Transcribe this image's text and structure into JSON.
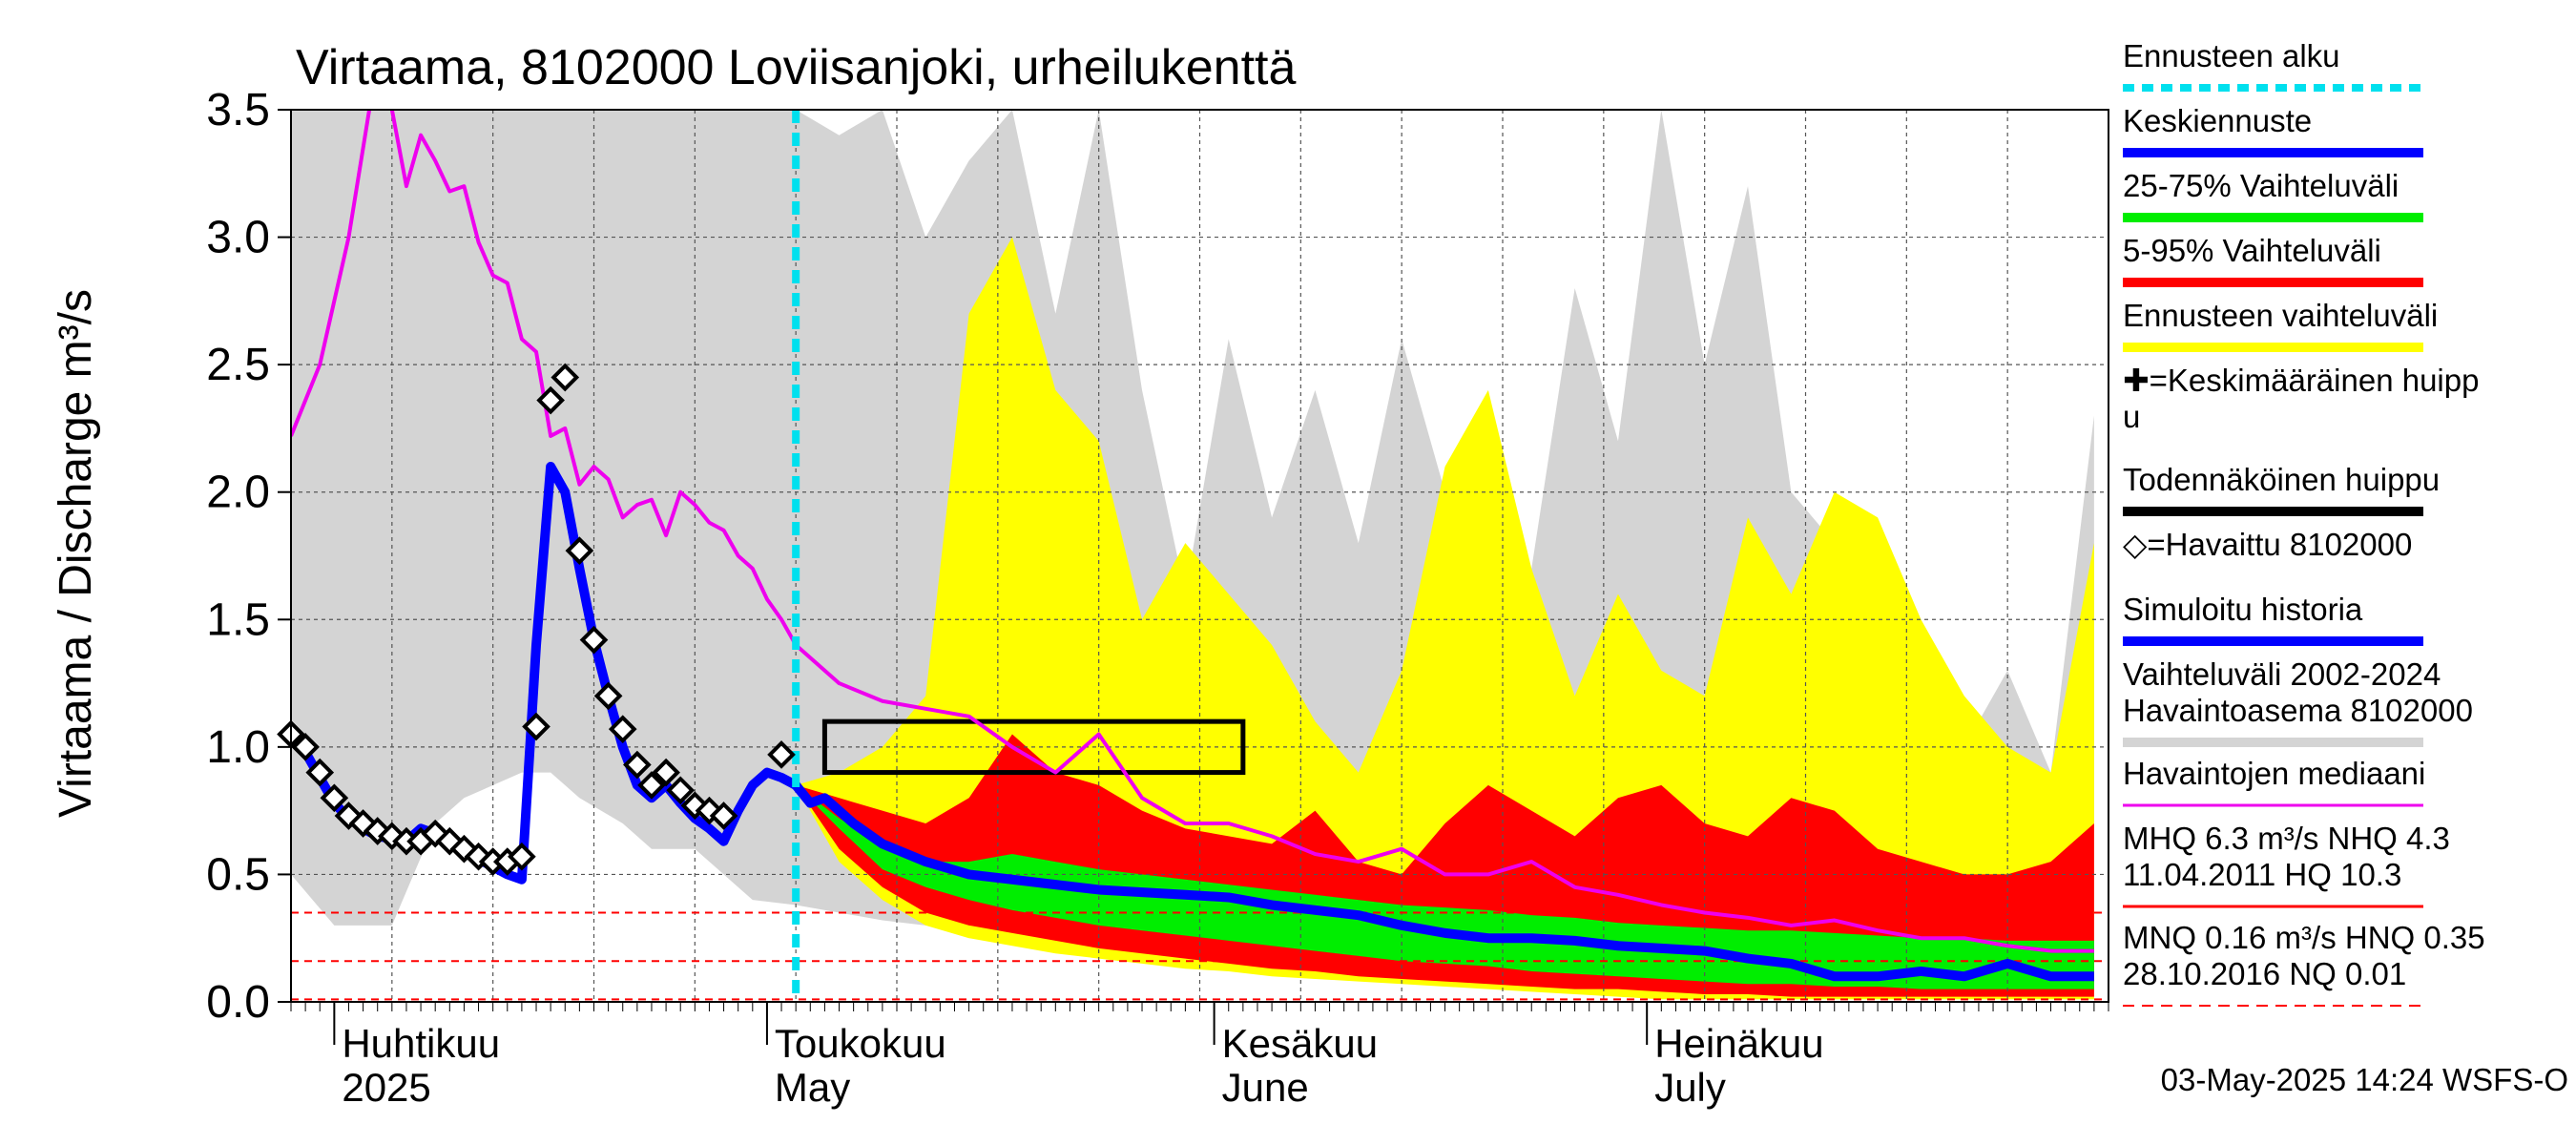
{
  "chart_data": {
    "type": "area",
    "title": "Virtaama, 8102000 Loviisanjoki, urheilukenttä",
    "ylabel": "Virtaama / Discharge    m³/s",
    "ylim": [
      0,
      3.5
    ],
    "yticks": [
      "0.0",
      "0.5",
      "1.0",
      "1.5",
      "2.0",
      "2.5",
      "3.0",
      "3.5"
    ],
    "x_domain": [
      "2025-03-29",
      "2025-08-02"
    ],
    "forecast_start": "2025-05-03",
    "months": [
      {
        "fi": "Huhtikuu",
        "en": "2025",
        "date": "2025-04-01"
      },
      {
        "fi": "Toukokuu",
        "en": "May",
        "date": "2025-05-01"
      },
      {
        "fi": "Kesäkuu",
        "en": "June",
        "date": "2025-06-01"
      },
      {
        "fi": "Heinäkuu",
        "en": "July",
        "date": "2025-07-01"
      }
    ],
    "reference_lines": [
      0.35,
      0.16,
      0.01
    ],
    "probable_peak_box": {
      "x_start": "2025-05-05",
      "x_end": "2025-06-03",
      "y_low": 0.9,
      "y_high": 1.1
    },
    "series": [
      {
        "name": "Vaihteluväli 2002-2024 Havaintoasema 8102000",
        "color": "#d4d4d4",
        "x": [
          "2025-03-29",
          "2025-04-01",
          "2025-04-05",
          "2025-04-08",
          "2025-04-10",
          "2025-04-14",
          "2025-04-16",
          "2025-04-18",
          "2025-04-21",
          "2025-04-23",
          "2025-04-26",
          "2025-04-28",
          "2025-04-30",
          "2025-05-03",
          "2025-05-06",
          "2025-05-09",
          "2025-05-12",
          "2025-05-15",
          "2025-05-18",
          "2025-05-21",
          "2025-05-24",
          "2025-05-27",
          "2025-05-30",
          "2025-06-02",
          "2025-06-05",
          "2025-06-08",
          "2025-06-11",
          "2025-06-14",
          "2025-06-17",
          "2025-06-20",
          "2025-06-23",
          "2025-06-26",
          "2025-06-29",
          "2025-07-02",
          "2025-07-05",
          "2025-07-08",
          "2025-07-11",
          "2025-07-14",
          "2025-07-17",
          "2025-07-20",
          "2025-07-23",
          "2025-07-26",
          "2025-07-29",
          "2025-08-01"
        ],
        "upper": [
          3.5,
          3.5,
          3.5,
          3.5,
          3.5,
          3.5,
          3.5,
          3.5,
          3.5,
          3.5,
          3.5,
          3.5,
          3.5,
          3.5,
          3.4,
          3.5,
          3.0,
          3.3,
          3.5,
          2.7,
          3.5,
          2.4,
          1.6,
          2.6,
          1.9,
          2.4,
          1.8,
          2.6,
          2.0,
          2.3,
          1.7,
          2.8,
          2.2,
          3.5,
          2.5,
          3.2,
          2.0,
          1.8,
          1.2,
          1.5,
          1.0,
          1.3,
          0.9,
          2.3
        ],
        "lower": [
          0.5,
          0.3,
          0.3,
          0.7,
          0.8,
          0.9,
          0.9,
          0.8,
          0.7,
          0.6,
          0.6,
          0.5,
          0.4,
          0.38,
          0.35,
          0.32,
          0.3,
          0.28,
          0.26,
          0.24,
          0.22,
          0.2,
          0.19,
          0.18,
          0.17,
          0.16,
          0.15,
          0.14,
          0.13,
          0.12,
          0.11,
          0.1,
          0.1,
          0.09,
          0.08,
          0.08,
          0.07,
          0.07,
          0.06,
          0.06,
          0.05,
          0.05,
          0.05,
          0.05
        ]
      },
      {
        "name": "Ennusteen vaihteluväli",
        "color": "#ffff00",
        "x": [
          "2025-05-03",
          "2025-05-06",
          "2025-05-09",
          "2025-05-12",
          "2025-05-15",
          "2025-05-18",
          "2025-05-21",
          "2025-05-24",
          "2025-05-27",
          "2025-05-30",
          "2025-06-02",
          "2025-06-05",
          "2025-06-08",
          "2025-06-11",
          "2025-06-14",
          "2025-06-17",
          "2025-06-20",
          "2025-06-23",
          "2025-06-26",
          "2025-06-29",
          "2025-07-02",
          "2025-07-05",
          "2025-07-08",
          "2025-07-11",
          "2025-07-14",
          "2025-07-17",
          "2025-07-20",
          "2025-07-23",
          "2025-07-26",
          "2025-07-29",
          "2025-08-01"
        ],
        "upper": [
          0.85,
          0.9,
          1.0,
          1.2,
          2.7,
          3.0,
          2.4,
          2.2,
          1.5,
          1.8,
          1.6,
          1.4,
          1.1,
          0.9,
          1.3,
          2.1,
          2.4,
          1.7,
          1.2,
          1.6,
          1.3,
          1.2,
          1.9,
          1.6,
          2.0,
          1.9,
          1.5,
          1.2,
          1.0,
          0.9,
          1.8
        ],
        "lower": [
          0.85,
          0.55,
          0.4,
          0.3,
          0.25,
          0.22,
          0.19,
          0.17,
          0.15,
          0.13,
          0.12,
          0.1,
          0.09,
          0.08,
          0.07,
          0.06,
          0.05,
          0.04,
          0.03,
          0.02,
          0.01,
          0.01,
          0.01,
          0.01,
          0.01,
          0.01,
          0.01,
          0.01,
          0.01,
          0.01,
          0.01
        ]
      },
      {
        "name": "5-95% Vaihteluväli",
        "color": "#ff0000",
        "x": [
          "2025-05-03",
          "2025-05-06",
          "2025-05-09",
          "2025-05-12",
          "2025-05-15",
          "2025-05-18",
          "2025-05-21",
          "2025-05-24",
          "2025-05-27",
          "2025-05-30",
          "2025-06-02",
          "2025-06-05",
          "2025-06-08",
          "2025-06-11",
          "2025-06-14",
          "2025-06-17",
          "2025-06-20",
          "2025-06-23",
          "2025-06-26",
          "2025-06-29",
          "2025-07-02",
          "2025-07-05",
          "2025-07-08",
          "2025-07-11",
          "2025-07-14",
          "2025-07-17",
          "2025-07-20",
          "2025-07-23",
          "2025-07-26",
          "2025-07-29",
          "2025-08-01"
        ],
        "upper": [
          0.85,
          0.8,
          0.75,
          0.7,
          0.8,
          1.05,
          0.9,
          0.85,
          0.75,
          0.68,
          0.65,
          0.62,
          0.75,
          0.55,
          0.5,
          0.7,
          0.85,
          0.75,
          0.65,
          0.8,
          0.85,
          0.7,
          0.65,
          0.8,
          0.75,
          0.6,
          0.55,
          0.5,
          0.5,
          0.55,
          0.7
        ],
        "lower": [
          0.85,
          0.6,
          0.45,
          0.35,
          0.3,
          0.27,
          0.24,
          0.21,
          0.19,
          0.17,
          0.15,
          0.13,
          0.12,
          0.1,
          0.09,
          0.08,
          0.07,
          0.06,
          0.05,
          0.05,
          0.04,
          0.03,
          0.03,
          0.02,
          0.02,
          0.02,
          0.02,
          0.02,
          0.02,
          0.02,
          0.02
        ]
      },
      {
        "name": "25-75% Vaihteluväli",
        "color": "#00ee00",
        "x": [
          "2025-05-03",
          "2025-05-06",
          "2025-05-09",
          "2025-05-12",
          "2025-05-15",
          "2025-05-18",
          "2025-05-21",
          "2025-05-24",
          "2025-05-27",
          "2025-05-30",
          "2025-06-02",
          "2025-06-05",
          "2025-06-08",
          "2025-06-11",
          "2025-06-14",
          "2025-06-17",
          "2025-06-20",
          "2025-06-23",
          "2025-06-26",
          "2025-06-29",
          "2025-07-02",
          "2025-07-05",
          "2025-07-08",
          "2025-07-11",
          "2025-07-14",
          "2025-07-17",
          "2025-07-20",
          "2025-07-23",
          "2025-07-26",
          "2025-07-29",
          "2025-08-01"
        ],
        "upper": [
          0.85,
          0.72,
          0.62,
          0.55,
          0.55,
          0.58,
          0.55,
          0.52,
          0.5,
          0.48,
          0.46,
          0.44,
          0.42,
          0.4,
          0.38,
          0.37,
          0.36,
          0.34,
          0.33,
          0.31,
          0.3,
          0.29,
          0.28,
          0.28,
          0.27,
          0.26,
          0.25,
          0.25,
          0.24,
          0.24,
          0.24
        ],
        "lower": [
          0.85,
          0.68,
          0.52,
          0.45,
          0.4,
          0.36,
          0.33,
          0.3,
          0.28,
          0.26,
          0.24,
          0.22,
          0.2,
          0.18,
          0.16,
          0.15,
          0.14,
          0.12,
          0.11,
          0.1,
          0.09,
          0.08,
          0.07,
          0.07,
          0.06,
          0.06,
          0.05,
          0.05,
          0.05,
          0.05,
          0.05
        ]
      },
      {
        "name": "Havaintojen mediaani",
        "color": "#ee00ee",
        "x": [
          "2025-03-29",
          "2025-03-31",
          "2025-04-02",
          "2025-04-04",
          "2025-04-05",
          "2025-04-06",
          "2025-04-07",
          "2025-04-08",
          "2025-04-09",
          "2025-04-10",
          "2025-04-11",
          "2025-04-12",
          "2025-04-13",
          "2025-04-14",
          "2025-04-15",
          "2025-04-16",
          "2025-04-17",
          "2025-04-18",
          "2025-04-19",
          "2025-04-20",
          "2025-04-21",
          "2025-04-22",
          "2025-04-23",
          "2025-04-24",
          "2025-04-25",
          "2025-04-26",
          "2025-04-27",
          "2025-04-28",
          "2025-04-29",
          "2025-04-30",
          "2025-05-01",
          "2025-05-02",
          "2025-05-03",
          "2025-05-06",
          "2025-05-09",
          "2025-05-12",
          "2025-05-15",
          "2025-05-18",
          "2025-05-21",
          "2025-05-24",
          "2025-05-27",
          "2025-05-30",
          "2025-06-02",
          "2025-06-05",
          "2025-06-08",
          "2025-06-11",
          "2025-06-14",
          "2025-06-17",
          "2025-06-20",
          "2025-06-23",
          "2025-06-26",
          "2025-06-29",
          "2025-07-02",
          "2025-07-05",
          "2025-07-08",
          "2025-07-11",
          "2025-07-14",
          "2025-07-17",
          "2025-07-20",
          "2025-07-23",
          "2025-07-26",
          "2025-07-29",
          "2025-08-01"
        ],
        "values": [
          2.22,
          2.5,
          3.0,
          3.7,
          3.5,
          3.2,
          3.4,
          3.3,
          3.18,
          3.2,
          2.98,
          2.85,
          2.82,
          2.6,
          2.55,
          2.22,
          2.25,
          2.03,
          2.1,
          2.05,
          1.9,
          1.95,
          1.97,
          1.83,
          2.0,
          1.95,
          1.88,
          1.85,
          1.75,
          1.7,
          1.58,
          1.5,
          1.4,
          1.25,
          1.18,
          1.15,
          1.12,
          1.0,
          0.9,
          1.05,
          0.8,
          0.7,
          0.7,
          0.65,
          0.58,
          0.55,
          0.6,
          0.5,
          0.5,
          0.55,
          0.45,
          0.42,
          0.38,
          0.35,
          0.33,
          0.3,
          0.32,
          0.28,
          0.25,
          0.25,
          0.22,
          0.2,
          0.2
        ]
      },
      {
        "name": "Simuloitu historia",
        "color": "#0000ff",
        "x": [
          "2025-03-29",
          "2025-03-30",
          "2025-03-31",
          "2025-04-01",
          "2025-04-02",
          "2025-04-03",
          "2025-04-04",
          "2025-04-05",
          "2025-04-06",
          "2025-04-07",
          "2025-04-08",
          "2025-04-09",
          "2025-04-10",
          "2025-04-11",
          "2025-04-12",
          "2025-04-13",
          "2025-04-14",
          "2025-04-15",
          "2025-04-16",
          "2025-04-17",
          "2025-04-18",
          "2025-04-19",
          "2025-04-20",
          "2025-04-21",
          "2025-04-22",
          "2025-04-23",
          "2025-04-24",
          "2025-04-25",
          "2025-04-26",
          "2025-04-27",
          "2025-04-28",
          "2025-04-29",
          "2025-04-30",
          "2025-05-01",
          "2025-05-02",
          "2025-05-03"
        ],
        "values": [
          1.05,
          0.98,
          0.88,
          0.78,
          0.72,
          0.68,
          0.65,
          0.64,
          0.63,
          0.68,
          0.66,
          0.62,
          0.6,
          0.56,
          0.53,
          0.5,
          0.48,
          1.4,
          2.1,
          2.0,
          1.7,
          1.42,
          1.2,
          1.0,
          0.85,
          0.8,
          0.85,
          0.78,
          0.72,
          0.68,
          0.63,
          0.75,
          0.85,
          0.9,
          0.88,
          0.85
        ]
      },
      {
        "name": "Keskiennuste",
        "color": "#0000ff",
        "x": [
          "2025-05-03",
          "2025-05-04",
          "2025-05-05",
          "2025-05-07",
          "2025-05-09",
          "2025-05-12",
          "2025-05-15",
          "2025-05-18",
          "2025-05-21",
          "2025-05-24",
          "2025-05-27",
          "2025-05-30",
          "2025-06-02",
          "2025-06-05",
          "2025-06-08",
          "2025-06-11",
          "2025-06-14",
          "2025-06-17",
          "2025-06-20",
          "2025-06-23",
          "2025-06-26",
          "2025-06-29",
          "2025-07-02",
          "2025-07-05",
          "2025-07-08",
          "2025-07-11",
          "2025-07-14",
          "2025-07-17",
          "2025-07-20",
          "2025-07-23",
          "2025-07-26",
          "2025-07-29",
          "2025-08-01"
        ],
        "values": [
          0.85,
          0.78,
          0.8,
          0.7,
          0.62,
          0.55,
          0.5,
          0.48,
          0.46,
          0.44,
          0.43,
          0.42,
          0.41,
          0.38,
          0.36,
          0.34,
          0.3,
          0.27,
          0.25,
          0.25,
          0.24,
          0.22,
          0.21,
          0.2,
          0.17,
          0.15,
          0.1,
          0.1,
          0.12,
          0.1,
          0.15,
          0.1,
          0.1
        ]
      },
      {
        "name": "Havaittu 8102000",
        "color": "#000000",
        "x": [
          "2025-03-29",
          "2025-03-30",
          "2025-03-31",
          "2025-04-01",
          "2025-04-02",
          "2025-04-03",
          "2025-04-04",
          "2025-04-05",
          "2025-04-06",
          "2025-04-07",
          "2025-04-08",
          "2025-04-09",
          "2025-04-10",
          "2025-04-11",
          "2025-04-12",
          "2025-04-13",
          "2025-04-14",
          "2025-04-15",
          "2025-04-16",
          "2025-04-17",
          "2025-04-18",
          "2025-04-19",
          "2025-04-20",
          "2025-04-21",
          "2025-04-22",
          "2025-04-23",
          "2025-04-24",
          "2025-04-25",
          "2025-04-26",
          "2025-04-27",
          "2025-04-28",
          "2025-05-02"
        ],
        "values": [
          1.05,
          1.0,
          0.9,
          0.8,
          0.73,
          0.7,
          0.67,
          0.65,
          0.63,
          0.63,
          0.66,
          0.63,
          0.6,
          0.57,
          0.55,
          0.55,
          0.57,
          1.08,
          2.36,
          2.45,
          1.77,
          1.42,
          1.2,
          1.07,
          0.93,
          0.85,
          0.9,
          0.83,
          0.77,
          0.75,
          0.73,
          0.97
        ]
      }
    ],
    "legend": [
      {
        "label": "Ennusteen alku",
        "symbol": "dashed",
        "color": "#00e0ee"
      },
      {
        "label": "Keskiennuste",
        "symbol": "bar",
        "color": "#0000ff"
      },
      {
        "label": "25-75% Vaihteluväli",
        "symbol": "bar",
        "color": "#00ee00"
      },
      {
        "label": "5-95% Vaihteluväli",
        "symbol": "bar",
        "color": "#ff0000"
      },
      {
        "label": "Ennusteen vaihteluväli",
        "symbol": "bar",
        "color": "#ffff00"
      },
      {
        "label": "✚=Keskimääräinen huipp",
        "label2": "u",
        "symbol": "none",
        "color": "#000000"
      },
      {
        "label": "Todennäköinen huippu",
        "symbol": "bar",
        "color": "#000000"
      },
      {
        "label": "◇=Havaittu 8102000",
        "symbol": "none",
        "color": "#000000"
      },
      {
        "label": "Simuloitu historia",
        "symbol": "bar",
        "color": "#0000ff"
      },
      {
        "label": "Vaihteluväli 2002-2024",
        "label2": " Havaintoasema 8102000",
        "symbol": "bar",
        "color": "#d4d4d4"
      },
      {
        "label": "Havaintojen mediaani",
        "symbol": "thin",
        "color": "#ee00ee"
      },
      {
        "label": "MHQ  6.3 m³/s NHQ  4.3",
        "label2": "11.04.2011 HQ 10.3",
        "symbol": "thin",
        "color": "#ff0000"
      },
      {
        "label": "MNQ 0.16 m³/s HNQ 0.35",
        "label2": "28.10.2016 NQ 0.01",
        "symbol": "dashed",
        "color": "#ff0000"
      }
    ],
    "footer": "03-May-2025 14:24 WSFS-O"
  }
}
